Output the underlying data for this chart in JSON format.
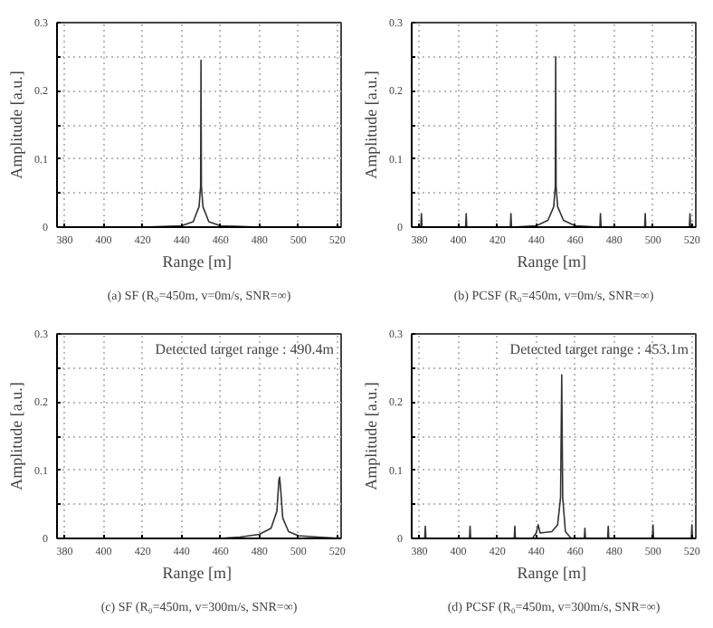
{
  "chart_data": [
    {
      "type": "line",
      "title": "(a) SF (R₀=450m, v=0m/s, SNR=∞)",
      "xlabel": "Range  [m]",
      "ylabel": "Amplitude [a.u.]",
      "grid": true,
      "xlim": [
        376,
        522
      ],
      "ylim": [
        0,
        0.3
      ],
      "xticks": [
        380,
        400,
        420,
        440,
        460,
        480,
        500,
        520
      ],
      "yticks": [
        0,
        {
          "value": 0.05,
          "label": null
        },
        0.1,
        {
          "value": 0.15,
          "label": null
        },
        0.2,
        {
          "value": 0.25,
          "label": null
        },
        0.3
      ],
      "series": [
        {
          "color": "#333333",
          "x": [
            376,
            420,
            440,
            446,
            449,
            449.8,
            450,
            450.2,
            451,
            454,
            460,
            480,
            522
          ],
          "values": [
            0,
            0,
            0.002,
            0.008,
            0.03,
            0.06,
            0.245,
            0.06,
            0.03,
            0.008,
            0.002,
            0,
            0
          ]
        }
      ]
    },
    {
      "type": "line",
      "title": "(b) PCSF (R₀=450m, v=0m/s, SNR=∞)",
      "xlabel": "Range  [m]",
      "ylabel": "Amplitude [a.u.]",
      "grid": true,
      "xlim": [
        376,
        522
      ],
      "ylim": [
        0,
        0.3
      ],
      "xticks": [
        380,
        400,
        420,
        440,
        460,
        480,
        500,
        520
      ],
      "yticks": [
        0,
        {
          "value": 0.05,
          "label": null
        },
        0.1,
        {
          "value": 0.15,
          "label": null
        },
        0.2,
        {
          "value": 0.25,
          "label": null
        },
        0.3
      ],
      "series": [
        {
          "color": "#333333",
          "x": [
            376,
            380.7,
            381,
            381.3,
            403.7,
            404,
            404.3,
            426.7,
            427,
            427.3,
            440,
            446,
            449,
            449.8,
            450,
            450.2,
            451,
            454,
            460,
            472.7,
            473,
            473.3,
            495.7,
            496,
            496.3,
            518.7,
            519,
            519.3,
            522
          ],
          "values": [
            0,
            0,
            0.02,
            0,
            0,
            0.02,
            0,
            0,
            0.02,
            0,
            0.002,
            0.01,
            0.03,
            0.06,
            0.25,
            0.06,
            0.03,
            0.01,
            0.002,
            0,
            0.02,
            0,
            0,
            0.02,
            0,
            0,
            0.02,
            0,
            0
          ]
        }
      ]
    },
    {
      "type": "line",
      "title": "(c) SF (R₀=450m, v=300m/s, SNR=∞)",
      "xlabel": "Range  [m]",
      "ylabel": "Amplitude [a.u.]",
      "grid": true,
      "xlim": [
        376,
        522
      ],
      "ylim": [
        0,
        0.3
      ],
      "xticks": [
        380,
        400,
        420,
        440,
        460,
        480,
        500,
        520
      ],
      "yticks": [
        0,
        {
          "value": 0.05,
          "label": null
        },
        0.1,
        {
          "value": 0.15,
          "label": null
        },
        0.2,
        {
          "value": 0.25,
          "label": null
        },
        0.3
      ],
      "annotations": [
        "Detected target range : 490.4m"
      ],
      "series": [
        {
          "color": "#333333",
          "x": [
            376,
            460,
            470,
            480,
            486,
            489,
            490,
            490.4,
            491,
            492,
            495,
            500,
            510,
            522
          ],
          "values": [
            0,
            0,
            0.002,
            0.006,
            0.015,
            0.04,
            0.085,
            0.09,
            0.07,
            0.03,
            0.01,
            0.004,
            0.002,
            0
          ]
        }
      ]
    },
    {
      "type": "line",
      "title": "(d) PCSF (R₀=450m, v=300m/s, SNR=∞)",
      "xlabel": "Range  [m]",
      "ylabel": "Amplitude [a.u.]",
      "grid": true,
      "xlim": [
        376,
        522
      ],
      "ylim": [
        0,
        0.3
      ],
      "xticks": [
        380,
        400,
        420,
        440,
        460,
        480,
        500,
        520
      ],
      "yticks": [
        0,
        {
          "value": 0.05,
          "label": null
        },
        0.1,
        {
          "value": 0.15,
          "label": null
        },
        0.2,
        {
          "value": 0.25,
          "label": null
        },
        0.3
      ],
      "annotations": [
        "Detected target range : 453.1m"
      ],
      "series": [
        {
          "color": "#333333",
          "x": [
            376,
            382.7,
            383,
            383.3,
            405.7,
            406,
            406.3,
            428.7,
            429,
            429.3,
            438,
            440,
            441,
            442,
            448,
            451,
            452.5,
            453.1,
            453.6,
            455,
            458,
            464.7,
            465,
            465.3,
            476.7,
            477,
            477.3,
            499.7,
            500,
            500.3,
            519.7,
            520,
            520.3,
            522
          ],
          "values": [
            0,
            0,
            0.018,
            0,
            0,
            0.018,
            0,
            0,
            0.018,
            0,
            0,
            0.008,
            0.02,
            0.008,
            0.01,
            0.02,
            0.06,
            0.24,
            0.06,
            0.01,
            0,
            0,
            0.015,
            0,
            0,
            0.018,
            0,
            0,
            0.02,
            0,
            0,
            0.02,
            0,
            0
          ]
        }
      ]
    }
  ]
}
